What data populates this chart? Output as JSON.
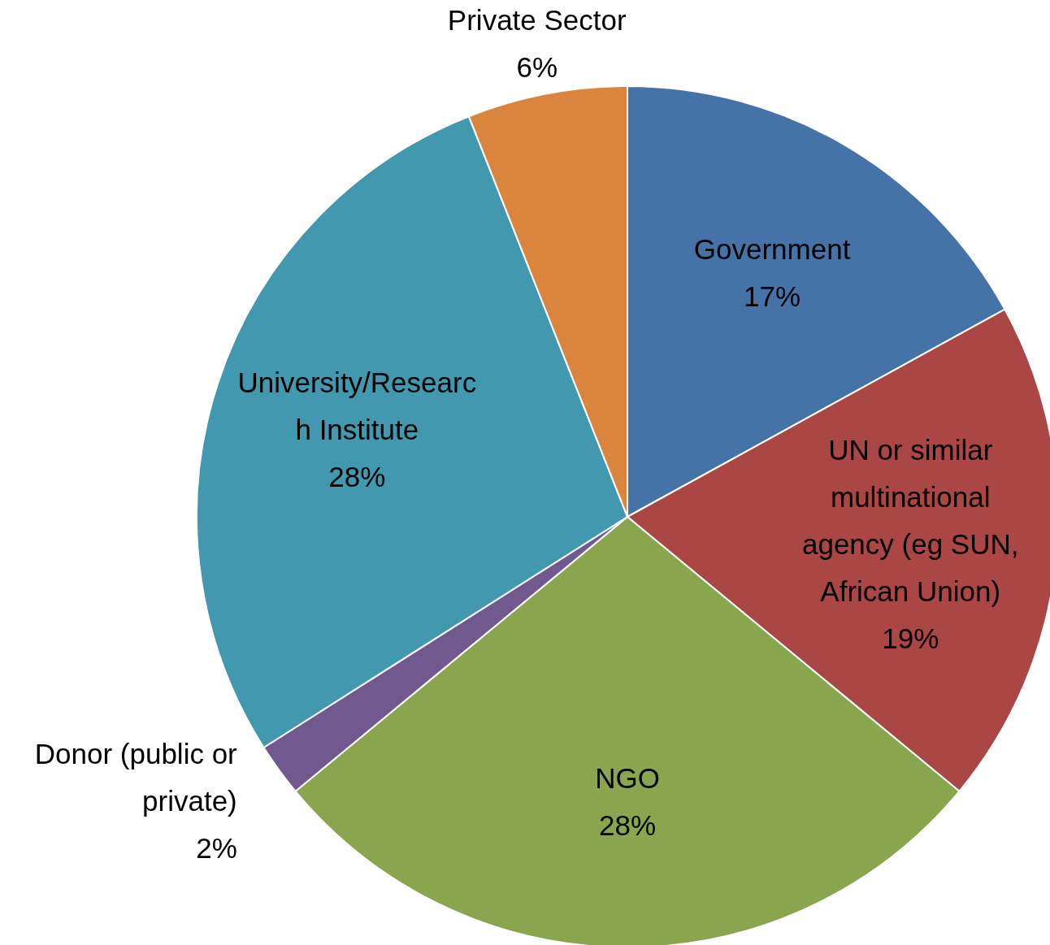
{
  "chart_data": {
    "type": "pie",
    "categories": [
      "Government",
      "UN or similar multinational agency (eg SUN, African Union)",
      "NGO",
      "Donor (public or private)",
      "University/Research Institute",
      "Private Sector"
    ],
    "values": [
      17,
      19,
      28,
      2,
      28,
      6
    ],
    "value_labels": [
      "17%",
      "19%",
      "28%",
      "2%",
      "28%",
      "6%"
    ],
    "colors": [
      "#4572a7",
      "#aa4643",
      "#89a54e",
      "#71588f",
      "#4198af",
      "#db843d"
    ],
    "legend": false
  }
}
